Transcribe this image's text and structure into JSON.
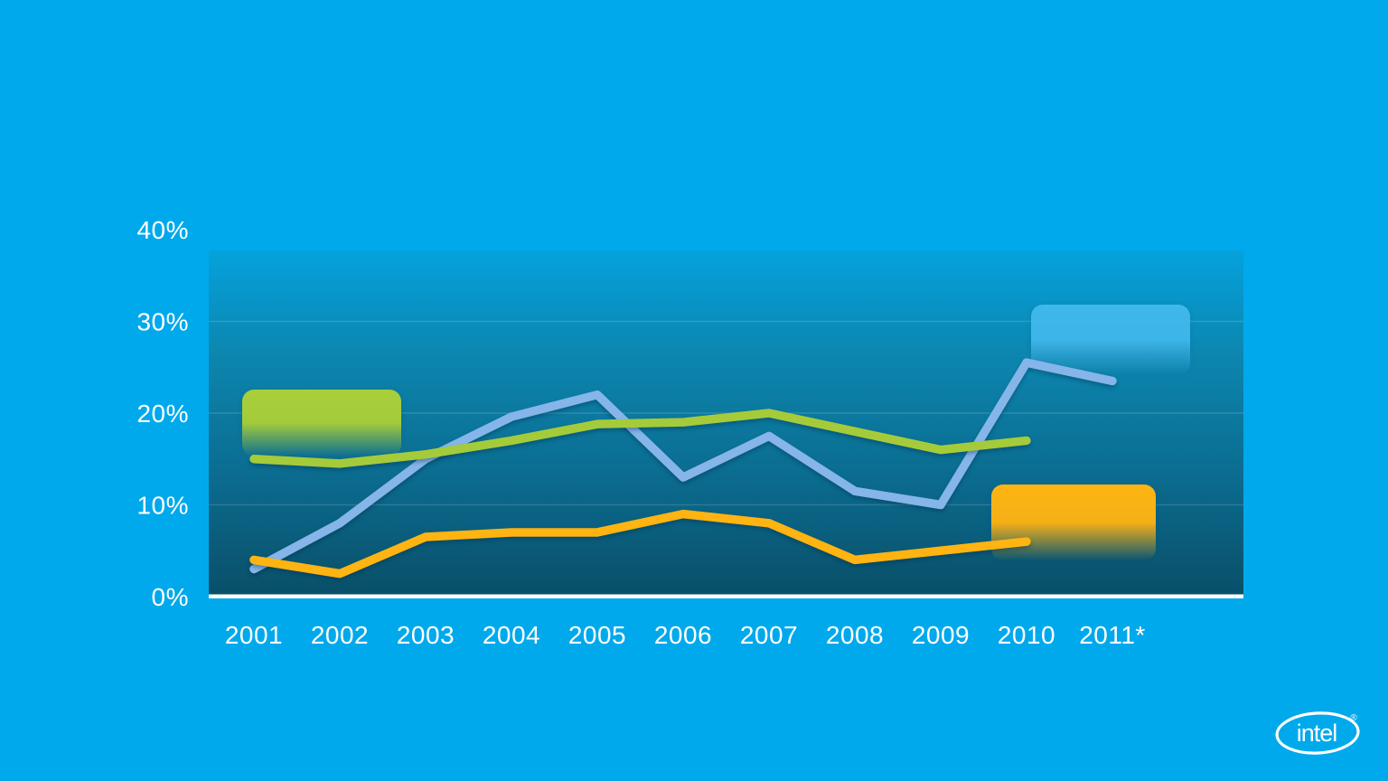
{
  "chart_data": {
    "type": "line",
    "title": "",
    "categories": [
      "2001",
      "2002",
      "2003",
      "2004",
      "2005",
      "2006",
      "2007",
      "2008",
      "2009",
      "2010",
      "2011*"
    ],
    "series": [
      {
        "name": "blue-series",
        "color": "#85B5E9",
        "values": [
          3,
          8,
          15,
          19.6,
          22,
          13,
          17.5,
          11.5,
          10,
          25.5,
          23.5
        ]
      },
      {
        "name": "green-series",
        "color": "#A5CB3A",
        "values": [
          15,
          14.5,
          15.5,
          17,
          18.8,
          19,
          20,
          18,
          16,
          17,
          null
        ]
      },
      {
        "name": "orange-series",
        "color": "#FFB412",
        "values": [
          4,
          2.5,
          6.5,
          7,
          7,
          9,
          8,
          4,
          5,
          6,
          null
        ]
      }
    ],
    "ylim": [
      0,
      40
    ],
    "yticks": [
      {
        "value": 40,
        "label": "40%"
      },
      {
        "value": 30,
        "label": "30%"
      },
      {
        "value": 20,
        "label": "20%"
      },
      {
        "value": 10,
        "label": "10%"
      },
      {
        "value": 0,
        "label": "0%"
      }
    ],
    "gridlines": [
      10,
      20,
      30
    ],
    "grid": true,
    "legend_position": "none",
    "callouts": [
      {
        "name": "green-callout",
        "color": "#A9CF38",
        "label": ""
      },
      {
        "name": "blue-callout",
        "color": "#3FB7EA",
        "label": ""
      },
      {
        "name": "orange-callout",
        "color": "#FFB412",
        "label": ""
      }
    ]
  },
  "palette": {
    "background": "#00A9EC",
    "plot_top": "#05A2DC",
    "plot_upper": "#0C86AF",
    "plot_lower": "#0B6C90",
    "plot_bottom": "#094F68",
    "axis_text": "#FFFFFF",
    "baseline": "#FFFFFF",
    "gridline": "rgba(255,255,255,0.14)"
  },
  "logo": {
    "text": "intel",
    "registered": "®"
  }
}
